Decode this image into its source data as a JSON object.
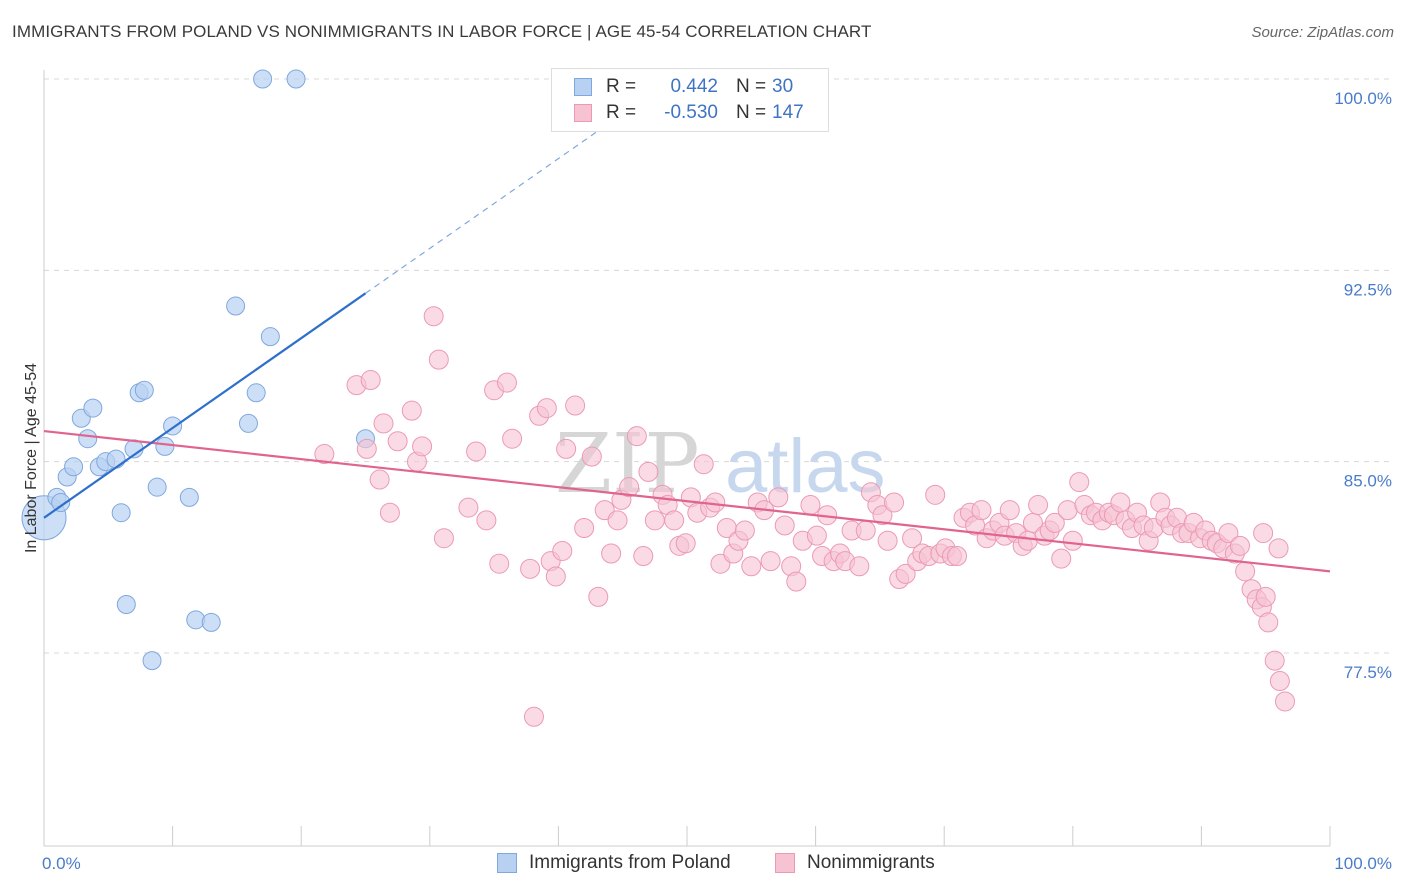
{
  "title": "IMMIGRANTS FROM POLAND VS NONIMMIGRANTS IN LABOR FORCE | AGE 45-54 CORRELATION CHART",
  "source": "Source: ZipAtlas.com",
  "watermark": {
    "part1": "ZIP",
    "part2": "atlas"
  },
  "colors": {
    "blue_fill": "#b8d1f2",
    "blue_stroke": "#7fa8dd",
    "blue_line": "#2f6fcc",
    "pink_fill": "#f7c3d3",
    "pink_stroke": "#ec9ab3",
    "pink_line": "#e0648f",
    "grid": "#d8d8d8",
    "tick_text": "#4a7cc9"
  },
  "legend_top": [
    {
      "r_label": "R =",
      "r_value": "0.442",
      "n_label": "N =",
      "n_value": "30"
    },
    {
      "r_label": "R =",
      "r_value": "-0.530",
      "n_label": "N =",
      "n_value": "147"
    }
  ],
  "legend_bottom": [
    {
      "label": "Immigrants from Poland"
    },
    {
      "label": "Nonimmigrants"
    }
  ],
  "chart_data": {
    "type": "scatter",
    "xlabel": "",
    "ylabel": "In Labor Force | Age 45-54",
    "xlim": [
      0,
      100
    ],
    "ylim": [
      70.0,
      100.5
    ],
    "x_tick_labels": [
      "0.0%",
      "100.0%"
    ],
    "y_ticks": [
      {
        "value": 100.0,
        "label": "100.0%"
      },
      {
        "value": 92.5,
        "label": "92.5%"
      },
      {
        "value": 85.0,
        "label": "85.0%"
      },
      {
        "value": 77.5,
        "label": "77.5%"
      }
    ],
    "grid": true,
    "legend_placement": "top-center",
    "series": [
      {
        "name": "Immigrants from Poland",
        "color": "#b8d1f2",
        "points": [
          [
            0.0,
            82.8
          ],
          [
            1.0,
            83.6
          ],
          [
            1.3,
            83.4
          ],
          [
            1.8,
            84.4
          ],
          [
            2.3,
            84.8
          ],
          [
            2.9,
            86.7
          ],
          [
            3.8,
            87.1
          ],
          [
            3.4,
            85.9
          ],
          [
            4.3,
            84.8
          ],
          [
            4.8,
            85.0
          ],
          [
            5.6,
            85.1
          ],
          [
            6.0,
            83.0
          ],
          [
            6.4,
            79.4
          ],
          [
            7.0,
            85.5
          ],
          [
            7.4,
            87.7
          ],
          [
            7.8,
            87.8
          ],
          [
            8.4,
            77.2
          ],
          [
            8.8,
            84.0
          ],
          [
            9.4,
            85.6
          ],
          [
            10.0,
            86.4
          ],
          [
            11.3,
            83.6
          ],
          [
            11.8,
            78.8
          ],
          [
            13.0,
            78.7
          ],
          [
            14.9,
            91.1
          ],
          [
            15.9,
            86.5
          ],
          [
            16.5,
            87.7
          ],
          [
            17.0,
            100.0
          ],
          [
            17.6,
            89.9
          ],
          [
            19.6,
            100.0
          ],
          [
            25.0,
            85.9
          ]
        ],
        "sizes": [
          28,
          12,
          12,
          12,
          12,
          12,
          12,
          12,
          12,
          12,
          12,
          12,
          12,
          12,
          12,
          12,
          12,
          12,
          12,
          12,
          12,
          12,
          12,
          12,
          12,
          12,
          12,
          12,
          12,
          12
        ],
        "trend": {
          "x0": 0.0,
          "y0": 82.8,
          "x1": 25.0,
          "y1": 91.6,
          "dashed_to_x": 45.0
        }
      },
      {
        "name": "Nonimmigrants",
        "color": "#f7c3d3",
        "points": [
          [
            21.8,
            85.3
          ],
          [
            24.3,
            88.0
          ],
          [
            25.1,
            85.5
          ],
          [
            25.4,
            88.2
          ],
          [
            26.1,
            84.3
          ],
          [
            26.4,
            86.5
          ],
          [
            26.9,
            83.0
          ],
          [
            27.5,
            85.8
          ],
          [
            28.6,
            87.0
          ],
          [
            29.0,
            85.0
          ],
          [
            29.4,
            85.6
          ],
          [
            30.3,
            90.7
          ],
          [
            30.7,
            89.0
          ],
          [
            31.1,
            82.0
          ],
          [
            33.0,
            83.2
          ],
          [
            33.6,
            85.4
          ],
          [
            34.4,
            82.7
          ],
          [
            35.0,
            87.8
          ],
          [
            35.4,
            81.0
          ],
          [
            36.0,
            88.1
          ],
          [
            36.4,
            85.9
          ],
          [
            37.8,
            80.8
          ],
          [
            38.1,
            75.0
          ],
          [
            38.5,
            86.8
          ],
          [
            39.1,
            87.1
          ],
          [
            39.4,
            81.1
          ],
          [
            39.8,
            80.5
          ],
          [
            40.3,
            81.5
          ],
          [
            40.6,
            85.5
          ],
          [
            41.3,
            87.2
          ],
          [
            42.0,
            82.4
          ],
          [
            42.6,
            85.2
          ],
          [
            43.1,
            79.7
          ],
          [
            43.6,
            83.1
          ],
          [
            44.1,
            81.4
          ],
          [
            44.6,
            82.7
          ],
          [
            44.9,
            83.5
          ],
          [
            45.5,
            84.0
          ],
          [
            46.1,
            86.0
          ],
          [
            46.6,
            81.3
          ],
          [
            47.0,
            84.6
          ],
          [
            47.5,
            82.7
          ],
          [
            48.1,
            83.7
          ],
          [
            48.5,
            83.3
          ],
          [
            49.0,
            82.7
          ],
          [
            49.4,
            81.7
          ],
          [
            49.9,
            81.8
          ],
          [
            50.3,
            83.6
          ],
          [
            50.8,
            83.0
          ],
          [
            51.3,
            84.9
          ],
          [
            51.8,
            83.2
          ],
          [
            52.2,
            83.4
          ],
          [
            52.6,
            81.0
          ],
          [
            53.1,
            82.4
          ],
          [
            53.6,
            81.4
          ],
          [
            54.0,
            81.9
          ],
          [
            54.5,
            82.3
          ],
          [
            55.0,
            80.9
          ],
          [
            55.5,
            83.4
          ],
          [
            56.0,
            83.1
          ],
          [
            56.5,
            81.1
          ],
          [
            57.1,
            83.6
          ],
          [
            57.6,
            82.5
          ],
          [
            58.1,
            80.9
          ],
          [
            58.5,
            80.3
          ],
          [
            59.0,
            81.9
          ],
          [
            59.6,
            83.3
          ],
          [
            60.1,
            82.1
          ],
          [
            60.5,
            81.3
          ],
          [
            60.9,
            82.9
          ],
          [
            61.4,
            81.1
          ],
          [
            61.9,
            81.4
          ],
          [
            62.3,
            81.1
          ],
          [
            62.8,
            82.3
          ],
          [
            63.4,
            80.9
          ],
          [
            63.9,
            82.3
          ],
          [
            64.3,
            83.8
          ],
          [
            64.8,
            83.3
          ],
          [
            65.2,
            82.9
          ],
          [
            65.6,
            81.9
          ],
          [
            66.1,
            83.4
          ],
          [
            66.5,
            80.4
          ],
          [
            67.0,
            80.6
          ],
          [
            67.5,
            82.0
          ],
          [
            67.9,
            81.1
          ],
          [
            68.3,
            81.4
          ],
          [
            68.8,
            81.3
          ],
          [
            69.3,
            83.7
          ],
          [
            69.7,
            81.4
          ],
          [
            70.1,
            81.6
          ],
          [
            70.6,
            81.3
          ],
          [
            71.0,
            81.3
          ],
          [
            71.5,
            82.8
          ],
          [
            72.0,
            83.0
          ],
          [
            72.4,
            82.5
          ],
          [
            72.9,
            83.1
          ],
          [
            73.3,
            82.0
          ],
          [
            73.8,
            82.3
          ],
          [
            74.3,
            82.6
          ],
          [
            74.7,
            82.1
          ],
          [
            75.1,
            83.1
          ],
          [
            75.6,
            82.2
          ],
          [
            76.1,
            81.7
          ],
          [
            76.5,
            81.9
          ],
          [
            76.9,
            82.6
          ],
          [
            77.3,
            83.3
          ],
          [
            77.8,
            82.1
          ],
          [
            78.2,
            82.3
          ],
          [
            78.6,
            82.6
          ],
          [
            79.1,
            81.2
          ],
          [
            79.6,
            83.1
          ],
          [
            80.0,
            81.9
          ],
          [
            80.5,
            84.2
          ],
          [
            80.9,
            83.3
          ],
          [
            81.4,
            82.9
          ],
          [
            81.8,
            83.0
          ],
          [
            82.3,
            82.7
          ],
          [
            82.8,
            83.0
          ],
          [
            83.2,
            82.9
          ],
          [
            83.7,
            83.4
          ],
          [
            84.1,
            82.7
          ],
          [
            84.6,
            82.4
          ],
          [
            85.0,
            83.0
          ],
          [
            85.5,
            82.5
          ],
          [
            85.9,
            81.9
          ],
          [
            86.3,
            82.4
          ],
          [
            86.8,
            83.4
          ],
          [
            87.2,
            82.8
          ],
          [
            87.6,
            82.5
          ],
          [
            88.1,
            82.8
          ],
          [
            88.5,
            82.2
          ],
          [
            89.0,
            82.2
          ],
          [
            89.4,
            82.6
          ],
          [
            89.9,
            82.0
          ],
          [
            90.3,
            82.3
          ],
          [
            90.8,
            81.9
          ],
          [
            91.2,
            81.8
          ],
          [
            91.7,
            81.6
          ],
          [
            92.1,
            82.2
          ],
          [
            92.6,
            81.4
          ],
          [
            93.0,
            81.7
          ],
          [
            93.4,
            80.7
          ],
          [
            93.9,
            80.0
          ],
          [
            94.3,
            79.6
          ],
          [
            94.7,
            79.3
          ],
          [
            95.2,
            78.7
          ],
          [
            95.7,
            77.2
          ],
          [
            96.1,
            76.4
          ],
          [
            96.5,
            75.6
          ],
          [
            95.0,
            79.7
          ],
          [
            96.0,
            81.6
          ],
          [
            94.8,
            82.2
          ]
        ],
        "trend": {
          "x0": 0.0,
          "y0": 86.2,
          "x1": 100.0,
          "y1": 80.7
        }
      }
    ]
  }
}
